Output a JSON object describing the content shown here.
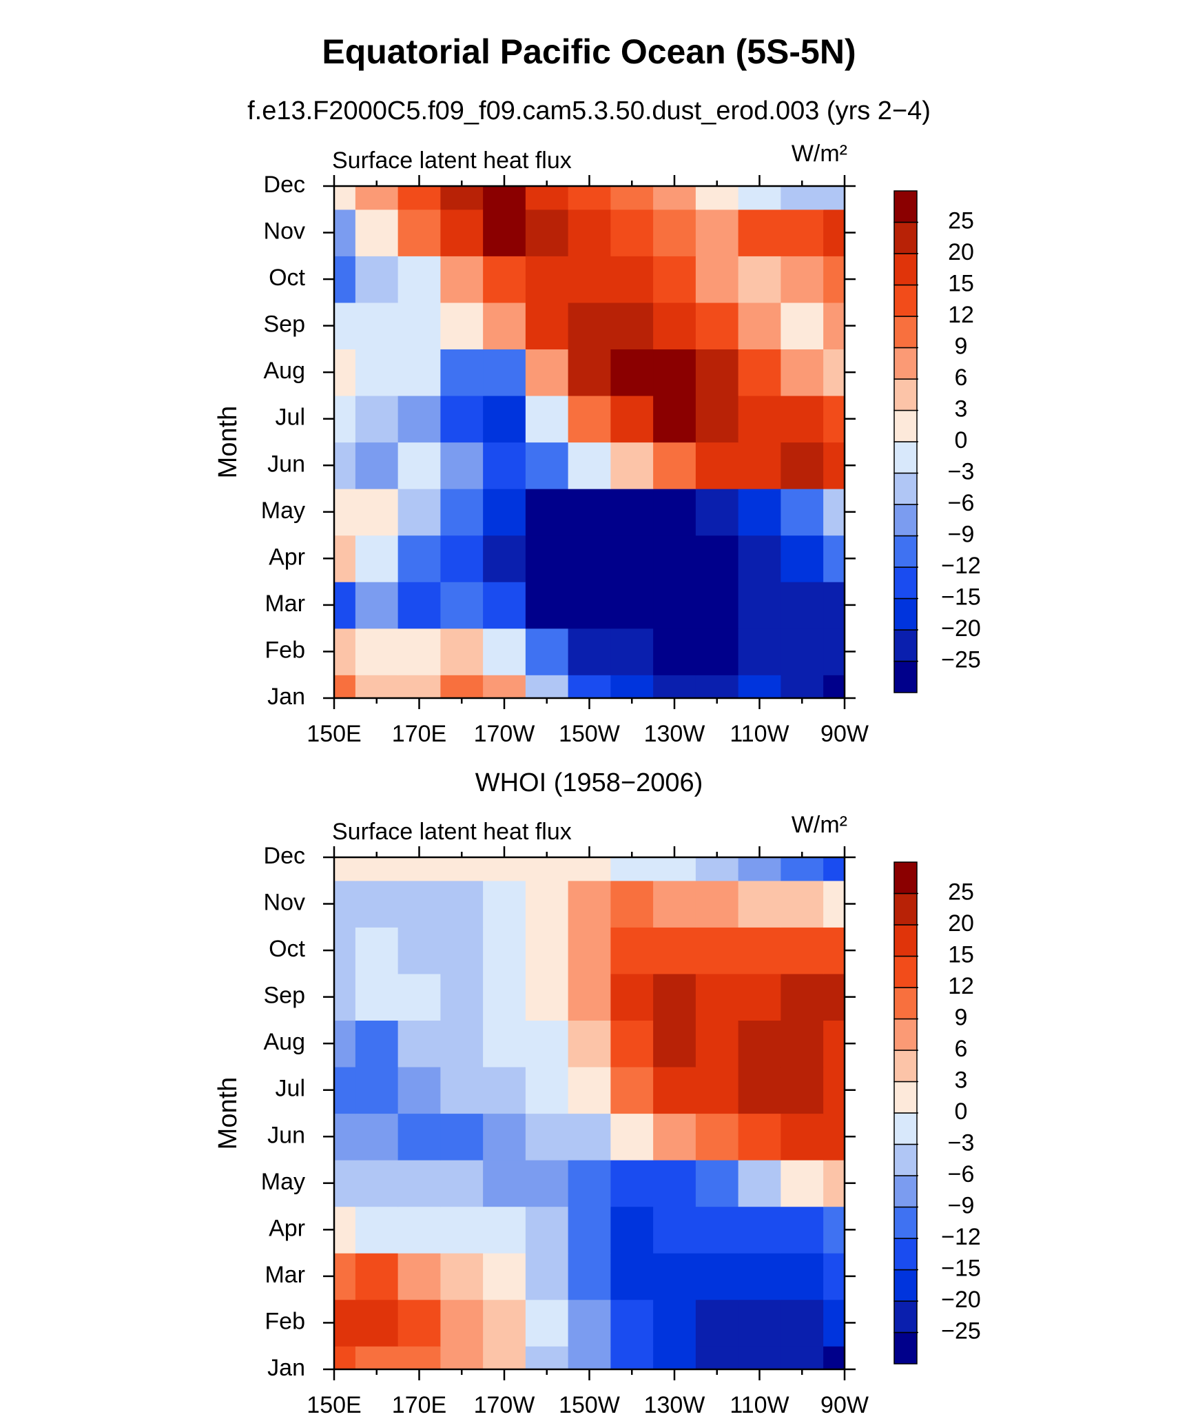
{
  "title": "Equatorial Pacific Ocean (5S-5N)",
  "chart_data": [
    {
      "type": "contour",
      "subtitle": "f.e13.F2000C5.f09_f09.cam5.3.50.dust_erod.003 (yrs 2−4)",
      "left_label": "Surface latent heat flux",
      "units": "W/m²",
      "y_label": "Month",
      "x": [
        150,
        160,
        170,
        180,
        190,
        200,
        210,
        220,
        230,
        240,
        250,
        260,
        270
      ],
      "xlim": [
        150,
        270
      ],
      "xticks": [
        {
          "value": 150,
          "label": "150E"
        },
        {
          "value": 170,
          "label": "170E"
        },
        {
          "value": 190,
          "label": "170W"
        },
        {
          "value": 210,
          "label": "150W"
        },
        {
          "value": 230,
          "label": "130W"
        },
        {
          "value": 250,
          "label": "110W"
        },
        {
          "value": 270,
          "label": "90W"
        }
      ],
      "categories": [
        "Jan",
        "Feb",
        "Mar",
        "Apr",
        "May",
        "Jun",
        "Jul",
        "Aug",
        "Sep",
        "Oct",
        "Nov",
        "Dec"
      ],
      "z": [
        [
          9,
          3,
          3,
          10,
          6,
          -6,
          -15,
          -20,
          -22,
          -22,
          -20,
          -22,
          -26
        ],
        [
          3,
          2,
          1,
          3,
          -3,
          -12,
          -22,
          -25,
          -28,
          -28,
          -24,
          -22,
          -24
        ],
        [
          -15,
          -8,
          -15,
          -12,
          -15,
          -26,
          -28,
          -28,
          -28,
          -27,
          -22,
          -22,
          -22
        ],
        [
          5,
          -3,
          -10,
          -15,
          -22,
          -28,
          -28,
          -28,
          -28,
          -26,
          -22,
          -18,
          -12
        ],
        [
          2,
          0,
          -6,
          -12,
          -20,
          -26,
          -28,
          -28,
          -26,
          -22,
          -16,
          -10,
          -6
        ],
        [
          -4,
          -8,
          -2,
          -8,
          -14,
          -10,
          -3,
          3,
          9,
          15,
          17,
          22,
          15
        ],
        [
          -2,
          -4,
          -8,
          -15,
          -18,
          -3,
          10,
          18,
          26,
          24,
          18,
          16,
          12
        ],
        [
          2,
          -3,
          -2,
          -10,
          -12,
          8,
          20,
          26,
          27,
          20,
          14,
          6,
          3
        ],
        [
          -2,
          -3,
          -2,
          2,
          8,
          15,
          22,
          24,
          18,
          12,
          6,
          2,
          6
        ],
        [
          -12,
          -4,
          -2,
          6,
          12,
          15,
          17,
          16,
          14,
          8,
          4,
          6,
          9
        ],
        [
          -8,
          0,
          10,
          18,
          25,
          20,
          17,
          14,
          10,
          8,
          12,
          14,
          18
        ],
        [
          2,
          6,
          14,
          22,
          28,
          18,
          14,
          10,
          6,
          2,
          -3,
          -6,
          -4
        ]
      ],
      "levels": [
        {
          "value": -25,
          "label": "−25"
        },
        {
          "value": -20,
          "label": "−20"
        },
        {
          "value": -15,
          "label": "−15"
        },
        {
          "value": -12,
          "label": "−12"
        },
        {
          "value": -9,
          "label": "−9"
        },
        {
          "value": -6,
          "label": "−6"
        },
        {
          "value": -3,
          "label": "−3"
        },
        0,
        3,
        6,
        9,
        12,
        15,
        20,
        25
      ],
      "colors": [
        "#00008b",
        "#0a1fae",
        "#0034dd",
        "#1a4cf0",
        "#3f72f2",
        "#7b9cf0",
        "#b0c6f5",
        "#d8e8fb",
        "#fde9da",
        "#fcc4a8",
        "#fb9a75",
        "#f8703e",
        "#f24c1a",
        "#e0340a",
        "#b82206",
        "#8b0000"
      ]
    },
    {
      "type": "contour",
      "subtitle": "WHOI (1958−2006)",
      "left_label": "Surface latent heat flux",
      "units": "W/m²",
      "y_label": "Month",
      "x": [
        150,
        160,
        170,
        180,
        190,
        200,
        210,
        220,
        230,
        240,
        250,
        260,
        270
      ],
      "xlim": [
        150,
        270
      ],
      "xticks": [
        {
          "value": 150,
          "label": "150E"
        },
        {
          "value": 170,
          "label": "170E"
        },
        {
          "value": 190,
          "label": "170W"
        },
        {
          "value": 210,
          "label": "150W"
        },
        {
          "value": 230,
          "label": "130W"
        },
        {
          "value": 250,
          "label": "110W"
        },
        {
          "value": 270,
          "label": "90W"
        }
      ],
      "categories": [
        "Jan",
        "Feb",
        "Mar",
        "Apr",
        "May",
        "Jun",
        "Jul",
        "Aug",
        "Sep",
        "Oct",
        "Nov",
        "Dec"
      ],
      "z": [
        [
          12,
          10,
          10,
          6,
          3,
          -4,
          -9,
          -14,
          -18,
          -22,
          -24,
          -22,
          -27
        ],
        [
          15,
          15,
          14,
          8,
          4,
          -3,
          -9,
          -15,
          -20,
          -22,
          -24,
          -22,
          -20
        ],
        [
          10,
          12,
          8,
          3,
          2,
          -4,
          -10,
          -16,
          -17,
          -16,
          -16,
          -18,
          -15
        ],
        [
          2,
          -2,
          -3,
          -3,
          -2,
          -6,
          -12,
          -16,
          -15,
          -14,
          -14,
          -13,
          -10
        ],
        [
          -6,
          -6,
          -5,
          -6,
          -7,
          -8,
          -12,
          -14,
          -14,
          -10,
          -4,
          0,
          3
        ],
        [
          -9,
          -9,
          -12,
          -10,
          -8,
          -4,
          -4,
          0,
          6,
          10,
          14,
          16,
          16
        ],
        [
          -10,
          -12,
          -8,
          -6,
          -4,
          -2,
          2,
          10,
          16,
          18,
          20,
          20,
          17
        ],
        [
          -9,
          -10,
          -6,
          -4,
          -2,
          -1,
          4,
          14,
          20,
          16,
          20,
          22,
          18
        ],
        [
          -5,
          -3,
          -3,
          -5,
          -2,
          1,
          6,
          16,
          20,
          16,
          18,
          22,
          24
        ],
        [
          -6,
          -2,
          -4,
          -6,
          -3,
          1,
          8,
          14,
          14,
          12,
          12,
          14,
          12
        ],
        [
          -6,
          -5,
          -5,
          -5,
          -3,
          1,
          6,
          10,
          8,
          6,
          4,
          3,
          2
        ],
        [
          1,
          2,
          2,
          1,
          1,
          1,
          0,
          -2,
          -3,
          -6,
          -9,
          -12,
          -15
        ]
      ],
      "levels": [
        {
          "value": -25,
          "label": "−25"
        },
        {
          "value": -20,
          "label": "−20"
        },
        {
          "value": -15,
          "label": "−15"
        },
        {
          "value": -12,
          "label": "−12"
        },
        {
          "value": -9,
          "label": "−9"
        },
        {
          "value": -6,
          "label": "−6"
        },
        {
          "value": -3,
          "label": "−3"
        },
        0,
        3,
        6,
        9,
        12,
        15,
        20,
        25
      ],
      "colors": [
        "#00008b",
        "#0a1fae",
        "#0034dd",
        "#1a4cf0",
        "#3f72f2",
        "#7b9cf0",
        "#b0c6f5",
        "#d8e8fb",
        "#fde9da",
        "#fcc4a8",
        "#fb9a75",
        "#f8703e",
        "#f24c1a",
        "#e0340a",
        "#b82206",
        "#8b0000"
      ]
    }
  ]
}
